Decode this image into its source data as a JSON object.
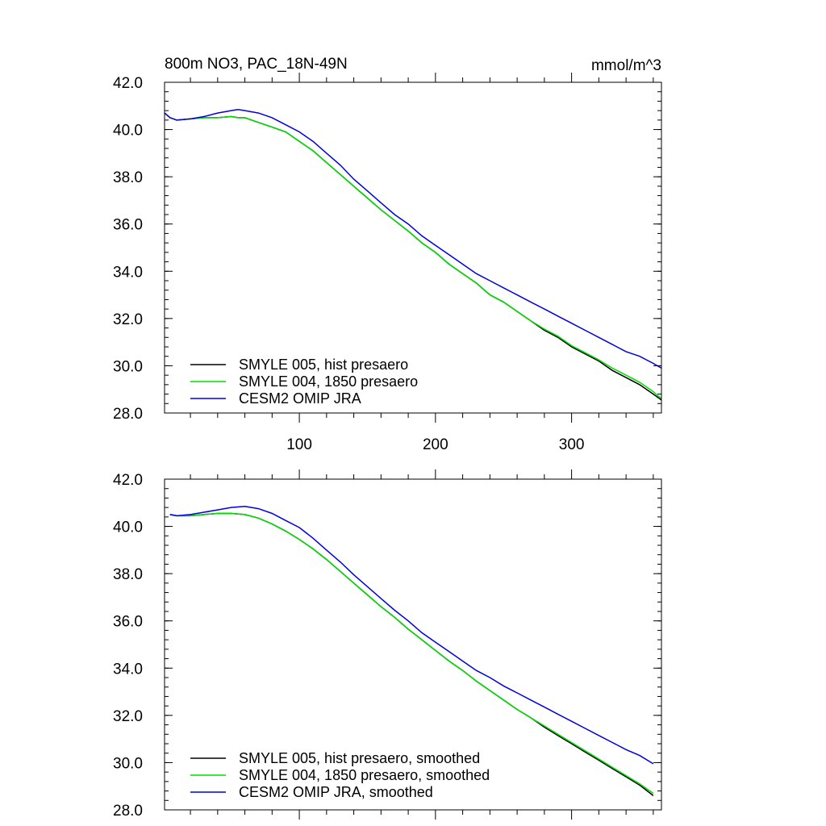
{
  "chart_data": [
    {
      "type": "line",
      "title": "800m NO3, PAC_18N-49N",
      "units": "mmol/m^3",
      "xlim": [
        1,
        366
      ],
      "ylim": [
        28.0,
        42.0
      ],
      "x_ticks": [
        100,
        200,
        300
      ],
      "x_tick_labels": [
        "100",
        "200",
        "300"
      ],
      "y_ticks": [
        28,
        30,
        32,
        34,
        36,
        38,
        40,
        42
      ],
      "y_tick_labels": [
        "28.0",
        "30.0",
        "32.0",
        "34.0",
        "36.0",
        "38.0",
        "40.0",
        "42.0"
      ],
      "grid": false,
      "legend_position": "bottom-left",
      "series": [
        {
          "name": "SMYLE 005, hist presaero",
          "color": "#000000",
          "x": [
            1,
            5,
            10,
            20,
            30,
            40,
            50,
            55,
            60,
            70,
            80,
            90,
            100,
            110,
            120,
            130,
            140,
            150,
            160,
            170,
            180,
            190,
            200,
            210,
            220,
            230,
            240,
            250,
            260,
            270,
            280,
            290,
            300,
            310,
            320,
            330,
            340,
            350,
            360,
            366
          ],
          "y": [
            40.7,
            40.5,
            40.4,
            40.45,
            40.5,
            40.5,
            40.55,
            40.5,
            40.5,
            40.3,
            40.1,
            39.9,
            39.5,
            39.1,
            38.6,
            38.1,
            37.6,
            37.1,
            36.6,
            36.15,
            35.7,
            35.2,
            34.8,
            34.3,
            33.9,
            33.5,
            33.0,
            32.7,
            32.3,
            31.9,
            31.5,
            31.2,
            30.8,
            30.5,
            30.2,
            29.8,
            29.5,
            29.2,
            28.8,
            28.55
          ]
        },
        {
          "name": "SMYLE 004, 1850 presaero",
          "color": "#00dd00",
          "x": [
            1,
            5,
            10,
            20,
            30,
            40,
            50,
            55,
            60,
            70,
            80,
            90,
            100,
            110,
            120,
            130,
            140,
            150,
            160,
            170,
            180,
            190,
            200,
            210,
            220,
            230,
            240,
            250,
            260,
            270,
            280,
            290,
            300,
            310,
            320,
            330,
            340,
            350,
            360,
            366
          ],
          "y": [
            40.7,
            40.5,
            40.4,
            40.45,
            40.5,
            40.5,
            40.55,
            40.5,
            40.5,
            40.3,
            40.1,
            39.9,
            39.5,
            39.1,
            38.6,
            38.1,
            37.6,
            37.1,
            36.6,
            36.15,
            35.7,
            35.2,
            34.8,
            34.3,
            33.9,
            33.5,
            33.0,
            32.7,
            32.3,
            31.9,
            31.55,
            31.25,
            30.85,
            30.55,
            30.25,
            29.9,
            29.6,
            29.3,
            28.9,
            28.6
          ]
        },
        {
          "name": "CESM2 OMIP JRA",
          "color": "#0000dd",
          "x": [
            1,
            5,
            10,
            20,
            30,
            40,
            50,
            55,
            60,
            70,
            80,
            90,
            100,
            110,
            120,
            130,
            140,
            150,
            160,
            170,
            180,
            190,
            200,
            210,
            220,
            230,
            240,
            250,
            260,
            270,
            280,
            290,
            300,
            310,
            320,
            330,
            340,
            350,
            360,
            366
          ],
          "y": [
            40.7,
            40.5,
            40.4,
            40.45,
            40.55,
            40.7,
            40.8,
            40.85,
            40.8,
            40.7,
            40.5,
            40.2,
            39.9,
            39.5,
            39.0,
            38.5,
            37.9,
            37.4,
            36.9,
            36.4,
            36.0,
            35.5,
            35.1,
            34.7,
            34.3,
            33.9,
            33.6,
            33.3,
            33.0,
            32.7,
            32.4,
            32.1,
            31.8,
            31.5,
            31.2,
            30.9,
            30.6,
            30.4,
            30.1,
            29.9
          ]
        }
      ]
    },
    {
      "type": "line",
      "title": "",
      "units": "",
      "xlim": [
        1,
        366
      ],
      "ylim": [
        28.0,
        42.0
      ],
      "x_ticks": [
        100,
        200,
        300
      ],
      "x_tick_labels": [],
      "y_ticks": [
        28,
        30,
        32,
        34,
        36,
        38,
        40,
        42
      ],
      "y_tick_labels": [
        "28.0",
        "30.0",
        "32.0",
        "34.0",
        "36.0",
        "38.0",
        "40.0",
        "42.0"
      ],
      "grid": false,
      "legend_position": "bottom-left",
      "series": [
        {
          "name": "SMYLE 005, hist presaero, smoothed",
          "color": "#000000",
          "x": [
            5,
            10,
            20,
            30,
            40,
            50,
            60,
            70,
            80,
            90,
            100,
            110,
            120,
            130,
            140,
            150,
            160,
            170,
            180,
            190,
            200,
            210,
            220,
            230,
            240,
            250,
            260,
            270,
            280,
            290,
            300,
            310,
            320,
            330,
            340,
            350,
            360
          ],
          "y": [
            40.5,
            40.45,
            40.45,
            40.5,
            40.55,
            40.55,
            40.5,
            40.35,
            40.1,
            39.8,
            39.45,
            39.05,
            38.6,
            38.1,
            37.6,
            37.1,
            36.6,
            36.15,
            35.65,
            35.2,
            34.75,
            34.3,
            33.9,
            33.45,
            33.05,
            32.65,
            32.25,
            31.9,
            31.5,
            31.15,
            30.8,
            30.45,
            30.1,
            29.75,
            29.4,
            29.05,
            28.6
          ]
        },
        {
          "name": "SMYLE 004, 1850 presaero, smoothed",
          "color": "#00dd00",
          "x": [
            5,
            10,
            20,
            30,
            40,
            50,
            60,
            70,
            80,
            90,
            100,
            110,
            120,
            130,
            140,
            150,
            160,
            170,
            180,
            190,
            200,
            210,
            220,
            230,
            240,
            250,
            260,
            270,
            280,
            290,
            300,
            310,
            320,
            330,
            340,
            350,
            360
          ],
          "y": [
            40.5,
            40.45,
            40.45,
            40.5,
            40.55,
            40.55,
            40.5,
            40.35,
            40.1,
            39.8,
            39.45,
            39.05,
            38.6,
            38.1,
            37.6,
            37.1,
            36.6,
            36.15,
            35.65,
            35.2,
            34.75,
            34.3,
            33.9,
            33.45,
            33.05,
            32.65,
            32.25,
            31.9,
            31.55,
            31.2,
            30.85,
            30.5,
            30.15,
            29.8,
            29.45,
            29.1,
            28.7
          ]
        },
        {
          "name": "CESM2 OMIP JRA, smoothed",
          "color": "#0000dd",
          "x": [
            5,
            10,
            20,
            30,
            40,
            50,
            60,
            70,
            80,
            90,
            100,
            110,
            120,
            130,
            140,
            150,
            160,
            170,
            180,
            190,
            200,
            210,
            220,
            230,
            240,
            250,
            260,
            270,
            280,
            290,
            300,
            310,
            320,
            330,
            340,
            350,
            360
          ],
          "y": [
            40.5,
            40.45,
            40.5,
            40.6,
            40.7,
            40.8,
            40.85,
            40.75,
            40.55,
            40.25,
            39.95,
            39.5,
            39.0,
            38.5,
            37.95,
            37.45,
            36.95,
            36.45,
            36.0,
            35.5,
            35.1,
            34.7,
            34.3,
            33.9,
            33.6,
            33.25,
            32.95,
            32.65,
            32.35,
            32.05,
            31.75,
            31.45,
            31.15,
            30.85,
            30.55,
            30.3,
            29.95
          ]
        }
      ]
    }
  ]
}
